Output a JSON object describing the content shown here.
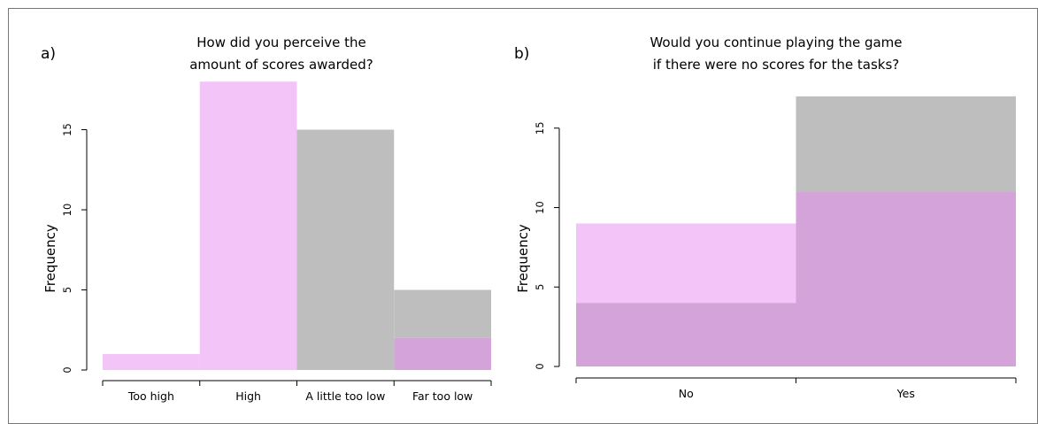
{
  "colors": {
    "pink": "#f3c4f8",
    "gray": "#bebebe",
    "overlap": "#d4a3da",
    "frame": "#777777"
  },
  "chart_data": [
    {
      "type": "bar",
      "panel_label": "a)",
      "title_lines": [
        "How did you perceive the",
        "amount of scores awarded?"
      ],
      "xlabel": "",
      "ylabel": "Frequency",
      "categories": [
        "Too high",
        "High",
        "A little too low",
        "Far too low"
      ],
      "series": [
        {
          "color": "pink",
          "values": [
            1,
            18,
            0,
            2
          ]
        },
        {
          "color": "gray",
          "values": [
            0,
            0,
            15,
            5
          ]
        }
      ],
      "yticks": [
        0,
        5,
        10,
        15
      ],
      "ylim": [
        0,
        18
      ],
      "grid": false,
      "legend": "none"
    },
    {
      "type": "bar",
      "panel_label": "b)",
      "title_lines": [
        "Would you continue playing the game",
        "if there were no scores for the tasks?"
      ],
      "xlabel": "",
      "ylabel": "Frequency",
      "categories": [
        "No",
        "Yes"
      ],
      "series": [
        {
          "color": "pink",
          "values": [
            9,
            11
          ]
        },
        {
          "color": "gray",
          "values": [
            4,
            17
          ]
        }
      ],
      "yticks": [
        0,
        5,
        10,
        15
      ],
      "ylim": [
        0,
        17
      ],
      "grid": false,
      "legend": "none"
    }
  ]
}
